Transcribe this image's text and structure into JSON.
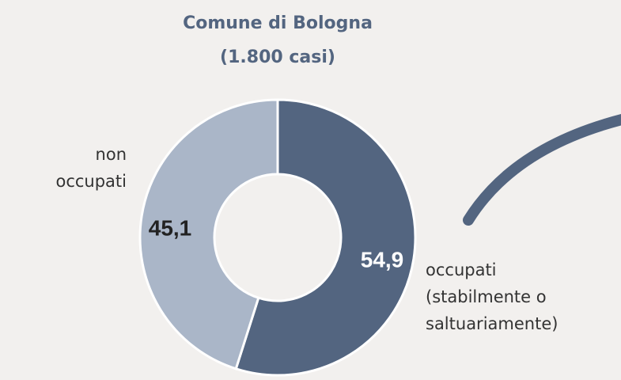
{
  "chart_data": {
    "type": "donut",
    "title": "Comune di Bologna",
    "subtitle": "(1.800 casi)",
    "categories": [
      [
        "occupati",
        "(stabilmente o",
        "saltuariamente)"
      ],
      [
        "non",
        "occupati"
      ]
    ],
    "values": [
      54.9,
      45.1
    ],
    "value_labels": [
      "54,9",
      "45,1"
    ],
    "colors": [
      "#536580",
      "#aab6c8"
    ],
    "value_label_colors": [
      "#ffffff",
      "#222222"
    ]
  }
}
